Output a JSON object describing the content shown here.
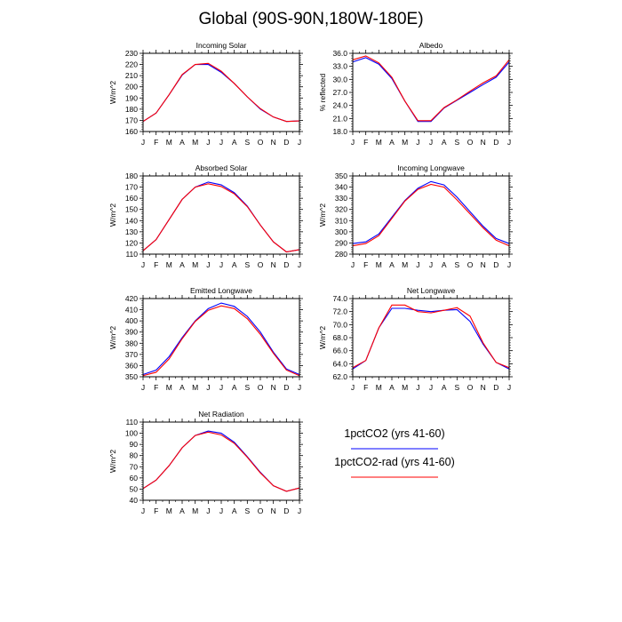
{
  "title": "Global (90S-90N,180W-180E)",
  "months": [
    "J",
    "F",
    "M",
    "A",
    "M",
    "J",
    "J",
    "A",
    "S",
    "O",
    "N",
    "D",
    "J"
  ],
  "legend": [
    {
      "label": "1pctCO2 (yrs 41-60)",
      "color": "#0000ff"
    },
    {
      "label": "1pctCO2-rad (yrs 41-60)",
      "color": "#ff0000"
    }
  ],
  "chart_data": [
    {
      "type": "line",
      "title": "Incoming Solar",
      "ylabel": "W/m^2",
      "ylim": [
        160,
        230
      ],
      "yticks": [
        "160",
        "170",
        "180",
        "190",
        "200",
        "210",
        "220",
        "230"
      ],
      "series": [
        {
          "name": "1pctCO2 (yrs 41-60)",
          "values": [
            169,
            176.5,
            193,
            210.5,
            220,
            220,
            213,
            203,
            191,
            180,
            173,
            169,
            169.5
          ]
        },
        {
          "name": "1pctCO2-rad (yrs 41-60)",
          "values": [
            169,
            176.5,
            193,
            211,
            220,
            221,
            214,
            203,
            191,
            180.5,
            173,
            169,
            169.5
          ]
        }
      ]
    },
    {
      "type": "line",
      "title": "Albedo",
      "ylabel": "% reflected",
      "ylim": [
        18,
        36
      ],
      "yticks": [
        "18.0",
        "21.0",
        "24.0",
        "27.0",
        "30.0",
        "33.0",
        "36.0"
      ],
      "series": [
        {
          "name": "1pctCO2 (yrs 41-60)",
          "values": [
            34,
            35,
            33.5,
            30.2,
            25,
            20.3,
            20.3,
            23.4,
            25.2,
            27,
            28.8,
            30.5,
            34
          ]
        },
        {
          "name": "1pctCO2-rad (yrs 41-60)",
          "values": [
            34.5,
            35.4,
            33.8,
            30.5,
            25,
            20.5,
            20.5,
            23.5,
            25.3,
            27.3,
            29.2,
            30.8,
            34.5
          ]
        }
      ]
    },
    {
      "type": "line",
      "title": "Absorbed Solar",
      "ylabel": "W/m^2",
      "ylim": [
        110,
        180
      ],
      "yticks": [
        "110",
        "120",
        "130",
        "140",
        "150",
        "160",
        "170",
        "180"
      ],
      "series": [
        {
          "name": "1pctCO2 (yrs 41-60)",
          "values": [
            113,
            123,
            141,
            159,
            170,
            174.5,
            172,
            165,
            153,
            136,
            121,
            112,
            114
          ]
        },
        {
          "name": "1pctCO2-rad (yrs 41-60)",
          "values": [
            113,
            123,
            141,
            159,
            170,
            173,
            170.5,
            164,
            152.5,
            136,
            121,
            112,
            114
          ]
        }
      ]
    },
    {
      "type": "line",
      "title": "Incoming Longwave",
      "ylabel": "W/m^2",
      "ylim": [
        280,
        350
      ],
      "yticks": [
        "280",
        "290",
        "300",
        "310",
        "320",
        "330",
        "340",
        "350"
      ],
      "series": [
        {
          "name": "1pctCO2 (yrs 41-60)",
          "values": [
            289.5,
            291,
            298,
            313,
            328,
            339,
            345,
            342,
            331,
            318,
            305,
            294,
            289.5
          ]
        },
        {
          "name": "1pctCO2-rad (yrs 41-60)",
          "values": [
            287.5,
            289.5,
            296.5,
            312,
            327.5,
            338,
            342.5,
            340,
            328.5,
            316,
            303.5,
            292.5,
            287.5
          ]
        }
      ]
    },
    {
      "type": "line",
      "title": "Emitted Longwave",
      "ylabel": "W/m^2",
      "ylim": [
        350,
        420
      ],
      "yticks": [
        "350",
        "360",
        "370",
        "380",
        "390",
        "400",
        "410",
        "420"
      ],
      "series": [
        {
          "name": "1pctCO2 (yrs 41-60)",
          "values": [
            352,
            356,
            368,
            385,
            400,
            411,
            416,
            413,
            404,
            390,
            372,
            357,
            352
          ]
        },
        {
          "name": "1pctCO2-rad (yrs 41-60)",
          "values": [
            351,
            354,
            366,
            384,
            399.5,
            409.5,
            413.5,
            411,
            402,
            388,
            371,
            356,
            351
          ]
        }
      ]
    },
    {
      "type": "line",
      "title": "Net Longwave",
      "ylabel": "W/m^2",
      "ylim": [
        62,
        74
      ],
      "yticks": [
        "62.0",
        "64.0",
        "66.0",
        "68.0",
        "70.0",
        "72.0",
        "74.0"
      ],
      "series": [
        {
          "name": "1pctCO2 (yrs 41-60)",
          "values": [
            63.2,
            64.5,
            69.5,
            72.5,
            72.5,
            72.2,
            72,
            72.2,
            72.3,
            70.5,
            67,
            64.2,
            63.2
          ]
        },
        {
          "name": "1pctCO2-rad (yrs 41-60)",
          "values": [
            63.4,
            64.5,
            69.5,
            73,
            73,
            72,
            71.8,
            72.2,
            72.6,
            71.3,
            67.2,
            64.2,
            63.4
          ]
        }
      ]
    },
    {
      "type": "line",
      "title": "Net Radiation",
      "ylabel": "W/m^2",
      "ylim": [
        40,
        110
      ],
      "yticks": [
        "40",
        "50",
        "60",
        "70",
        "80",
        "90",
        "100",
        "110"
      ],
      "series": [
        {
          "name": "1pctCO2 (yrs 41-60)",
          "values": [
            50.5,
            58,
            71,
            87,
            98,
            102,
            100,
            92,
            79,
            65,
            53,
            48,
            51
          ]
        },
        {
          "name": "1pctCO2-rad (yrs 41-60)",
          "values": [
            50.5,
            58,
            71,
            87,
            98,
            101,
            98.5,
            91,
            78.5,
            64.5,
            53,
            48,
            51
          ]
        }
      ]
    }
  ]
}
